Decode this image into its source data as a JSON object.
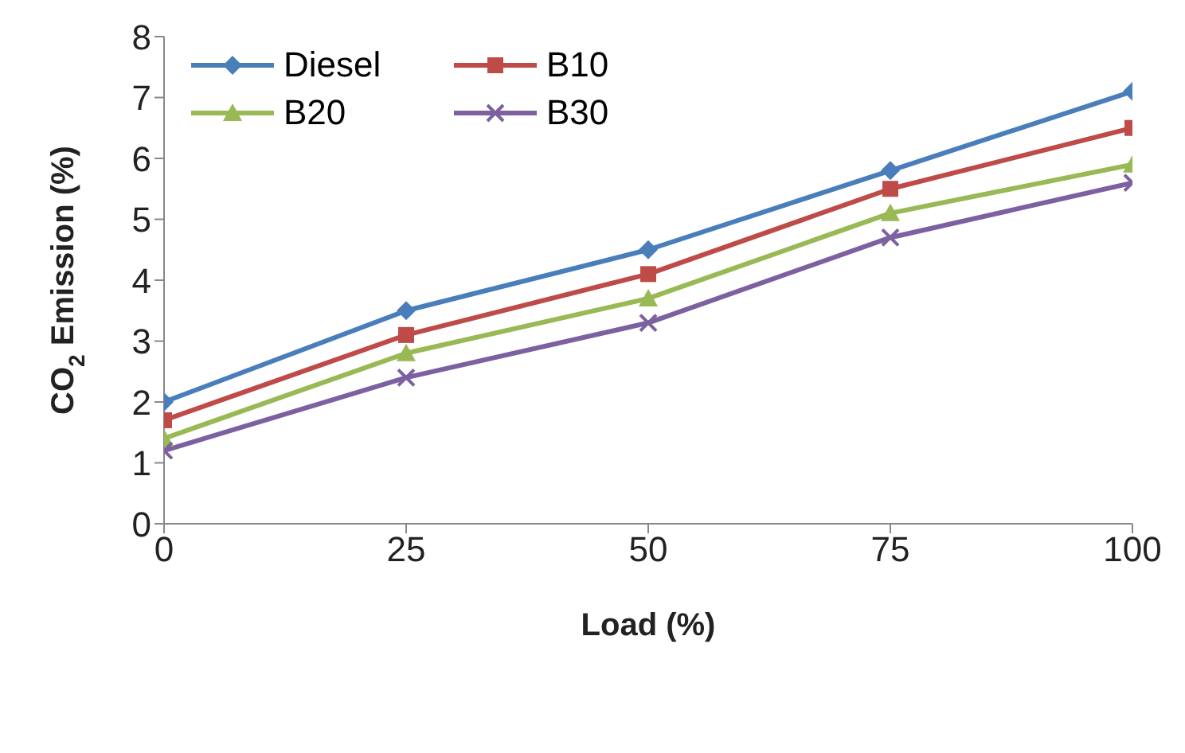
{
  "chart_data": {
    "type": "line",
    "xlabel": "Load (%)",
    "ylabel": "CO$_{2}$ Emission (%)",
    "x": [
      0,
      25,
      50,
      75,
      100
    ],
    "series": [
      {
        "name": "Diesel",
        "color": "#4a7ebb",
        "marker": "diamond",
        "values": [
          2.0,
          3.5,
          4.5,
          5.8,
          7.1
        ]
      },
      {
        "name": "B10",
        "color": "#be4b48",
        "marker": "square",
        "values": [
          1.7,
          3.1,
          4.1,
          5.5,
          6.5
        ]
      },
      {
        "name": "B20",
        "color": "#98b954",
        "marker": "triangle",
        "values": [
          1.4,
          2.8,
          3.7,
          5.1,
          5.9
        ]
      },
      {
        "name": "B30",
        "color": "#7d60a0",
        "marker": "cross",
        "values": [
          1.2,
          2.4,
          3.3,
          4.7,
          5.6
        ]
      }
    ],
    "xlim": [
      0,
      100
    ],
    "xticks": [
      0,
      25,
      50,
      75,
      100
    ],
    "ylim": [
      0,
      8
    ],
    "yticks": [
      0,
      1,
      2,
      3,
      4,
      5,
      6,
      7,
      8
    ],
    "grid": false,
    "legend": "top left",
    "line_style": "solid"
  }
}
